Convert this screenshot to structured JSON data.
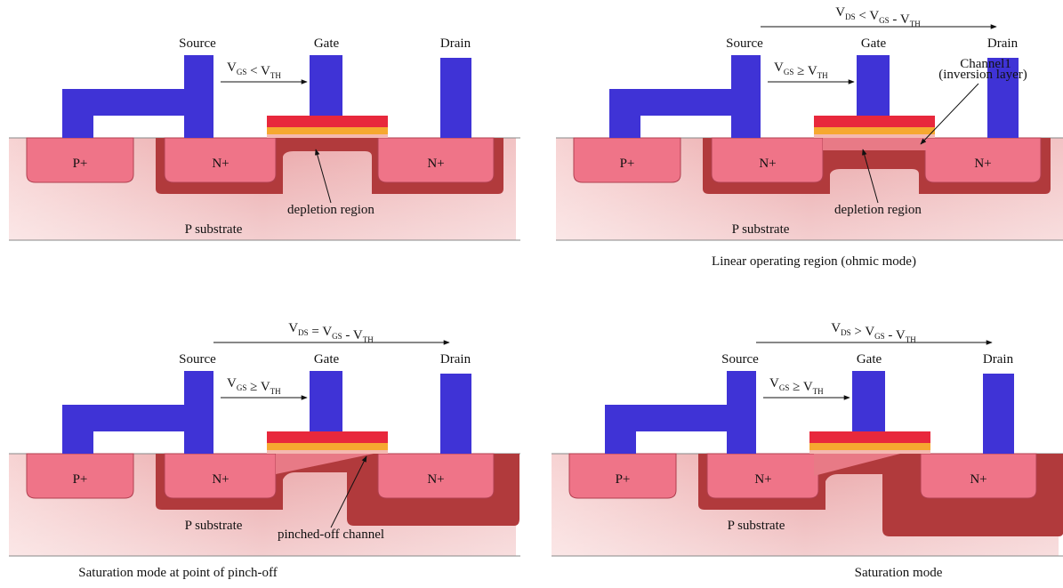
{
  "panels": [
    {
      "labels": {
        "source": "Source",
        "gate": "Gate",
        "drain": "Drain",
        "p_plus": "P+",
        "n_source": "N+",
        "n_drain": "N+",
        "substrate": "P substrate",
        "region": "depletion region"
      },
      "vgs": [
        {
          "text": "V"
        },
        {
          "sub": "GS"
        },
        {
          "text": " < V"
        },
        {
          "sub": "TH"
        }
      ]
    },
    {
      "labels": {
        "source": "Source",
        "gate": "Gate",
        "drain": "Drain",
        "p_plus": "P+",
        "n_source": "N+",
        "n_drain": "N+",
        "substrate": "P substrate",
        "region": "depletion region",
        "channel": "Channel1",
        "channel_note": "(inversion layer)"
      },
      "vds": [
        {
          "text": "V"
        },
        {
          "sub": "DS"
        },
        {
          "text": " < V"
        },
        {
          "sub": "GS"
        },
        {
          "text": " -  V"
        },
        {
          "sub": "TH"
        }
      ],
      "vgs": [
        {
          "text": "V"
        },
        {
          "sub": "GS"
        },
        {
          "text": " ≥ V"
        },
        {
          "sub": "TH"
        }
      ],
      "caption": "Linear operating region (ohmic mode)"
    },
    {
      "labels": {
        "source": "Source",
        "gate": "Gate",
        "drain": "Drain",
        "p_plus": "P+",
        "n_source": "N+",
        "n_drain": "N+",
        "substrate": "P substrate",
        "region": "pinched-off channel"
      },
      "vds": [
        {
          "text": "V"
        },
        {
          "sub": "DS"
        },
        {
          "text": " = V"
        },
        {
          "sub": "GS"
        },
        {
          "text": " -  V"
        },
        {
          "sub": "TH"
        }
      ],
      "vgs": [
        {
          "text": "V"
        },
        {
          "sub": "GS"
        },
        {
          "text": " ≥ V"
        },
        {
          "sub": "TH"
        }
      ],
      "caption": "Saturation mode at point of pinch-off"
    },
    {
      "labels": {
        "source": "Source",
        "gate": "Gate",
        "drain": "Drain",
        "p_plus": "P+",
        "n_source": "N+",
        "n_drain": "N+",
        "substrate": "P substrate"
      },
      "vds": [
        {
          "text": "V"
        },
        {
          "sub": "DS"
        },
        {
          "text": " > V"
        },
        {
          "sub": "GS"
        },
        {
          "text": " -  V"
        },
        {
          "sub": "TH"
        }
      ],
      "vgs": [
        {
          "text": "V"
        },
        {
          "sub": "GS"
        },
        {
          "text": " ≥ V"
        },
        {
          "sub": "TH"
        }
      ],
      "caption": "Saturation mode"
    }
  ]
}
